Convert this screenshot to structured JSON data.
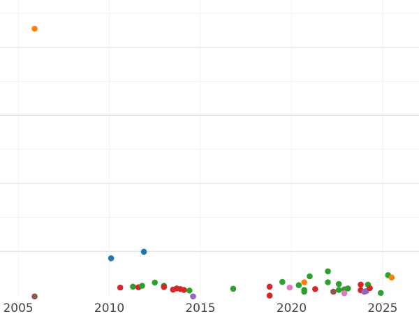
{
  "chart_data": {
    "type": "scatter",
    "title": "",
    "xlabel": "",
    "ylabel": "",
    "xlim": [
      2004.0,
      2027.0
    ],
    "ylim": [
      0,
      1
    ],
    "grid": true,
    "x_ticks": [
      {
        "value": 2005,
        "label": "2005"
      },
      {
        "value": 2010,
        "label": "2010"
      },
      {
        "value": 2015,
        "label": "2015"
      },
      {
        "value": 2020,
        "label": "2020"
      },
      {
        "value": 2025,
        "label": "2025"
      }
    ],
    "x_minor_ticks": [
      2005,
      2010,
      2015,
      2020,
      2025
    ],
    "y_major_gridlines": [
      0.15,
      0.38,
      0.61,
      0.84
    ],
    "y_minor_gridlines": [],
    "colors": {
      "blue": "#1f77b4",
      "orange": "#ff7f0e",
      "green": "#2ca02c",
      "red": "#d62728",
      "purple": "#9467bd",
      "brown": "#8c564b",
      "pink": "#e377c2"
    },
    "points": [
      {
        "x": 2005.9,
        "y": 0.903,
        "color": "orange"
      },
      {
        "x": 2005.9,
        "y": -0.002,
        "color": "brown"
      },
      {
        "x": 2010.1,
        "y": 0.127,
        "color": "blue"
      },
      {
        "x": 2011.9,
        "y": 0.149,
        "color": "blue"
      },
      {
        "x": 2010.6,
        "y": 0.028,
        "color": "red"
      },
      {
        "x": 2011.3,
        "y": 0.031,
        "color": "green"
      },
      {
        "x": 2011.6,
        "y": 0.029,
        "color": "red"
      },
      {
        "x": 2011.8,
        "y": 0.034,
        "color": "green"
      },
      {
        "x": 2012.5,
        "y": 0.045,
        "color": "green"
      },
      {
        "x": 2013.0,
        "y": 0.034,
        "color": "green"
      },
      {
        "x": 2013.0,
        "y": 0.03,
        "color": "red"
      },
      {
        "x": 2013.5,
        "y": 0.021,
        "color": "red"
      },
      {
        "x": 2013.7,
        "y": 0.025,
        "color": "red"
      },
      {
        "x": 2013.9,
        "y": 0.023,
        "color": "red"
      },
      {
        "x": 2014.1,
        "y": 0.02,
        "color": "red"
      },
      {
        "x": 2014.4,
        "y": 0.018,
        "color": "green"
      },
      {
        "x": 2014.6,
        "y": -0.002,
        "color": "purple"
      },
      {
        "x": 2016.8,
        "y": 0.024,
        "color": "green"
      },
      {
        "x": 2018.8,
        "y": 0.031,
        "color": "red"
      },
      {
        "x": 2018.8,
        "y": 0.001,
        "color": "red"
      },
      {
        "x": 2019.5,
        "y": 0.047,
        "color": "green"
      },
      {
        "x": 2019.9,
        "y": 0.028,
        "color": "pink"
      },
      {
        "x": 2020.4,
        "y": 0.036,
        "color": "green"
      },
      {
        "x": 2020.7,
        "y": 0.046,
        "color": "orange"
      },
      {
        "x": 2020.7,
        "y": 0.02,
        "color": "green"
      },
      {
        "x": 2020.7,
        "y": 0.014,
        "color": "green"
      },
      {
        "x": 2021.0,
        "y": 0.066,
        "color": "green"
      },
      {
        "x": 2021.3,
        "y": 0.023,
        "color": "red"
      },
      {
        "x": 2022.0,
        "y": 0.083,
        "color": "green"
      },
      {
        "x": 2022.0,
        "y": 0.046,
        "color": "green"
      },
      {
        "x": 2022.3,
        "y": 0.014,
        "color": "brown"
      },
      {
        "x": 2022.6,
        "y": 0.04,
        "color": "green"
      },
      {
        "x": 2022.6,
        "y": 0.02,
        "color": "green"
      },
      {
        "x": 2022.9,
        "y": 0.022,
        "color": "green"
      },
      {
        "x": 2022.9,
        "y": 0.009,
        "color": "pink"
      },
      {
        "x": 2023.1,
        "y": 0.025,
        "color": "green"
      },
      {
        "x": 2023.8,
        "y": 0.038,
        "color": "red"
      },
      {
        "x": 2023.8,
        "y": 0.019,
        "color": "red"
      },
      {
        "x": 2024.0,
        "y": 0.014,
        "color": "purple"
      },
      {
        "x": 2024.1,
        "y": 0.016,
        "color": "purple"
      },
      {
        "x": 2024.2,
        "y": 0.038,
        "color": "green"
      },
      {
        "x": 2024.3,
        "y": 0.026,
        "color": "red"
      },
      {
        "x": 2024.9,
        "y": 0.01,
        "color": "green"
      },
      {
        "x": 2025.3,
        "y": 0.07,
        "color": "green"
      },
      {
        "x": 2025.5,
        "y": 0.062,
        "color": "orange"
      }
    ]
  }
}
